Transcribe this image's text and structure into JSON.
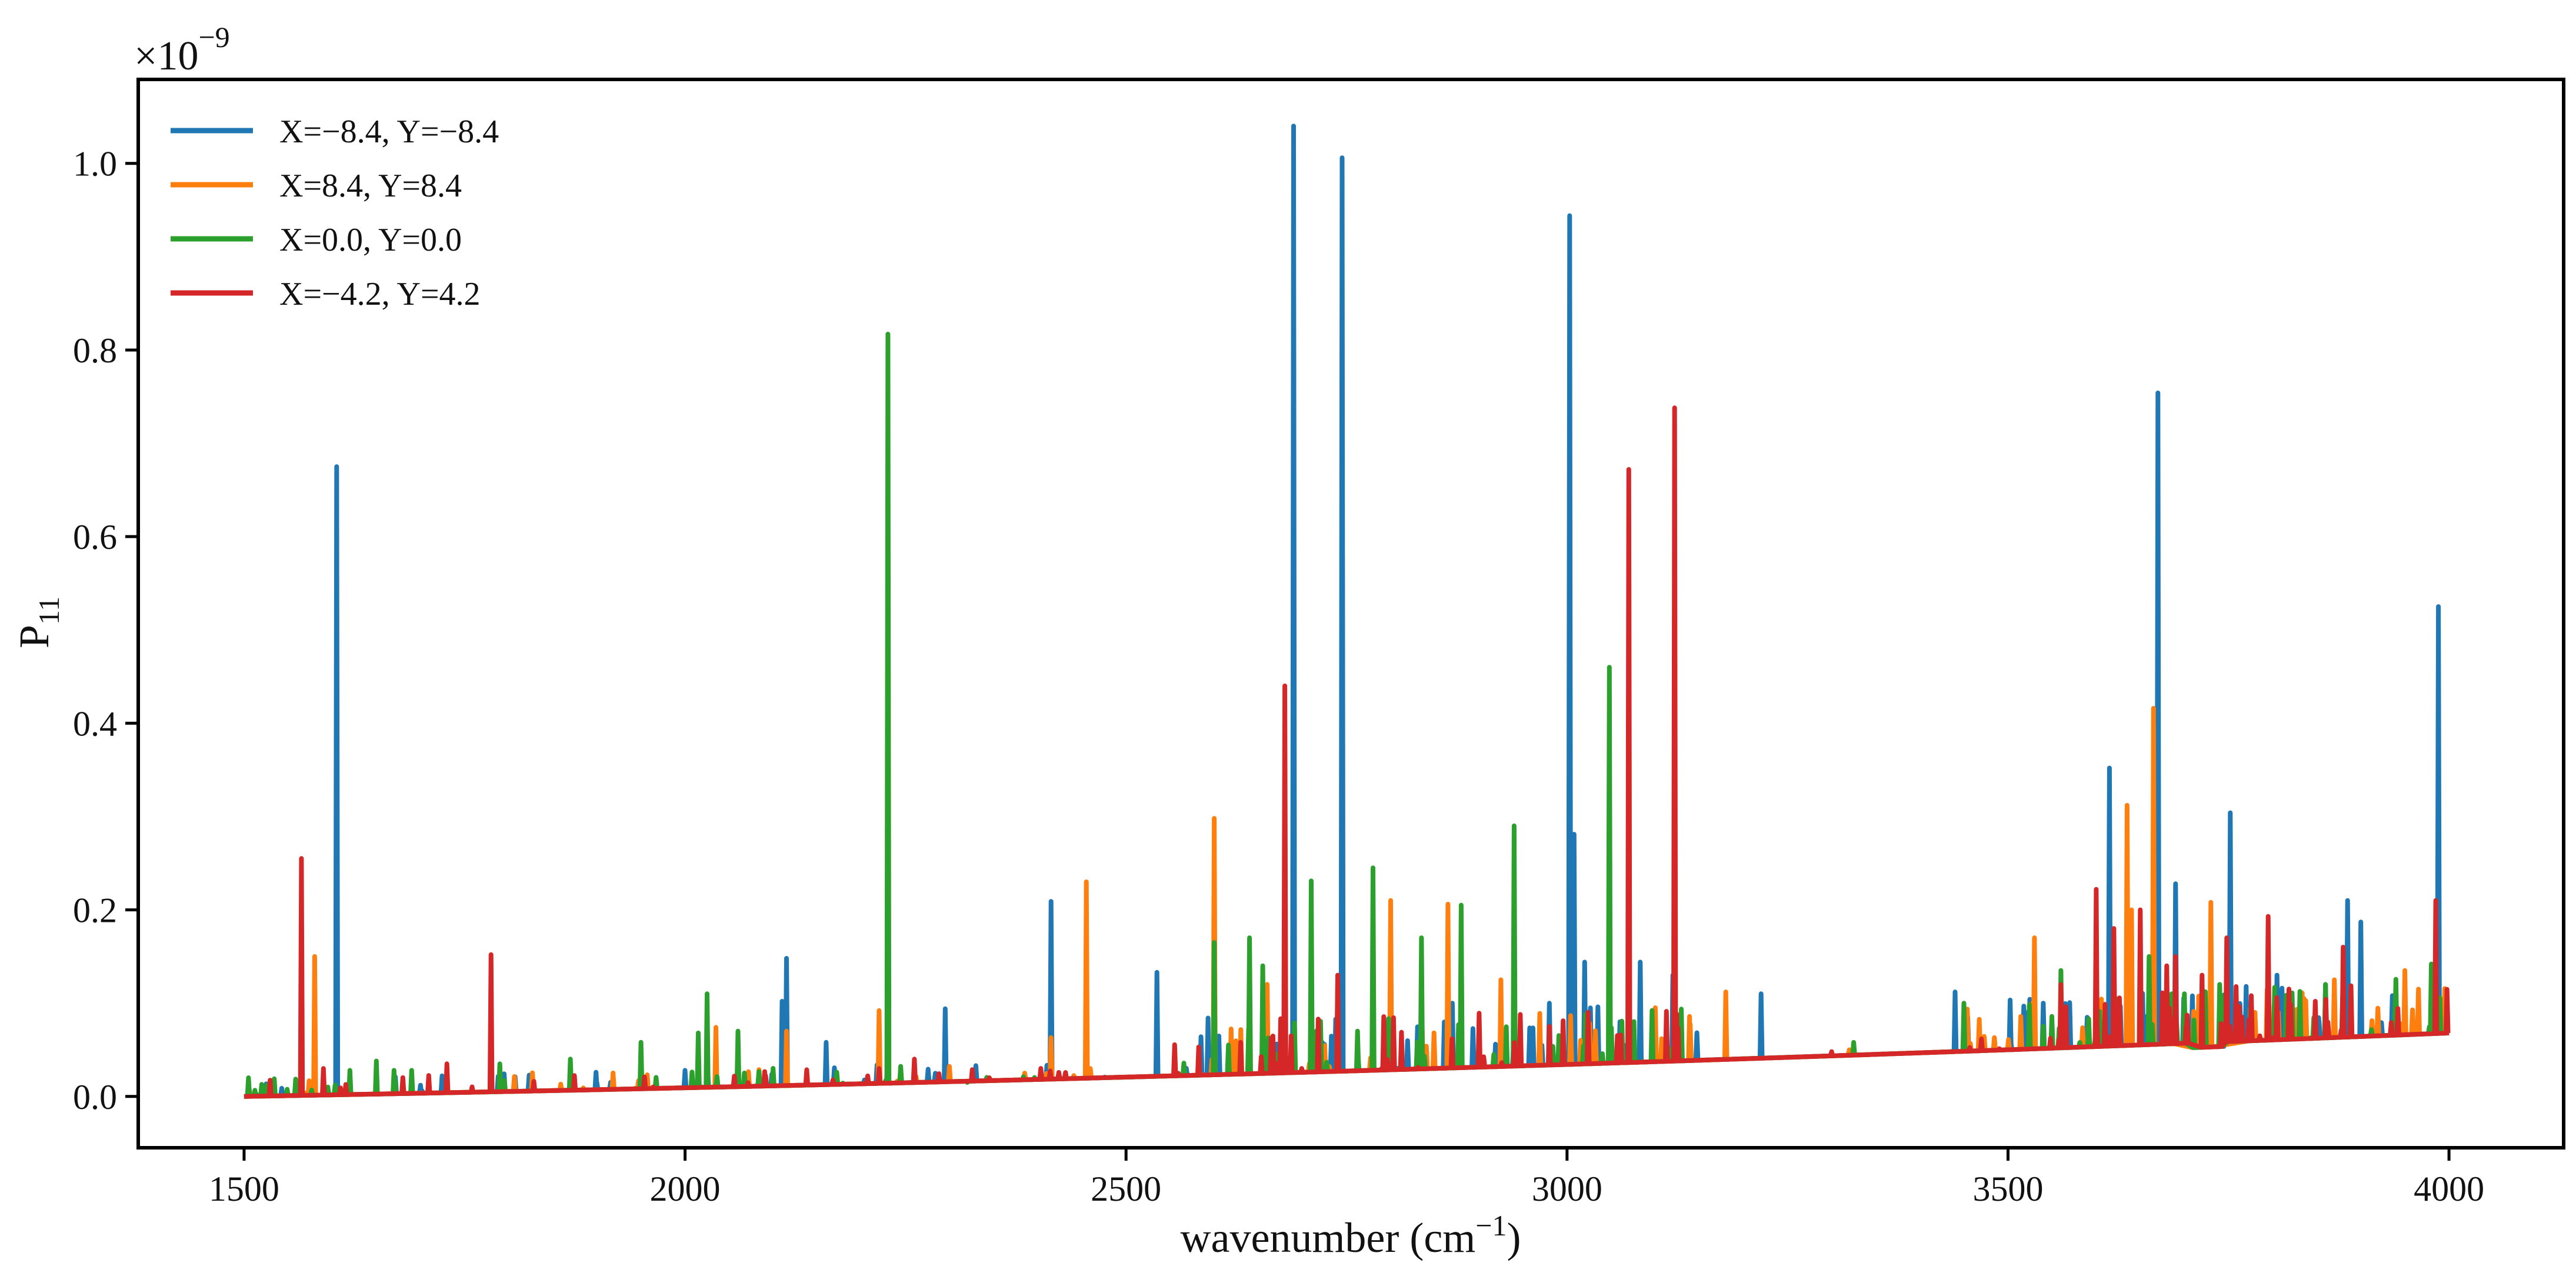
{
  "chart_data": {
    "type": "line",
    "title": "",
    "xlabel": "wavenumber (cm",
    "xlabel_sup": "−1",
    "xlabel_end": ")",
    "ylabel": "P",
    "ylabel_sub": "11",
    "offset_base": "×10",
    "offset_exp": "−9",
    "xlim": [
      1380,
      4130
    ],
    "ylim": [
      -0.055,
      1.09
    ],
    "x_ticks": [
      1500,
      2000,
      2500,
      3000,
      3500,
      4000
    ],
    "x_tick_labels": [
      "1500",
      "2000",
      "2500",
      "3000",
      "3500",
      "4000"
    ],
    "y_ticks": [
      0.0,
      0.2,
      0.4,
      0.6,
      0.8,
      1.0
    ],
    "y_tick_labels": [
      "0.0",
      "0.2",
      "0.4",
      "0.6",
      "0.8",
      "1.0"
    ],
    "grid": false,
    "legend_position": "top-left",
    "baseline": {
      "x_start": 1500,
      "x_end": 4000,
      "y_start": 0.0,
      "y_end": 0.068,
      "dip_x": [
        3708,
        3745
      ],
      "dip_depth": -0.005
    },
    "series": [
      {
        "name": "X=−8.4, Y=−8.4",
        "color": "#1f77b4",
        "peaks": [
          [
            1605,
            0.675
          ],
          [
            2110,
            0.102
          ],
          [
            2115,
            0.148
          ],
          [
            2160,
            0.058
          ],
          [
            2295,
            0.094
          ],
          [
            2415,
            0.209
          ],
          [
            2470,
            0.02
          ],
          [
            2535,
            0.133
          ],
          [
            2585,
            0.064
          ],
          [
            2593,
            0.084
          ],
          [
            2690,
            1.04
          ],
          [
            2745,
            1.006
          ],
          [
            3003,
            0.944
          ],
          [
            3008,
            0.281
          ],
          [
            3020,
            0.144
          ],
          [
            3035,
            0.096
          ],
          [
            3083,
            0.144
          ],
          [
            3120,
            0.13
          ],
          [
            3220,
            0.11
          ],
          [
            3440,
            0.112
          ],
          [
            3615,
            0.352
          ],
          [
            3670,
            0.754
          ],
          [
            3690,
            0.228
          ],
          [
            3752,
            0.304
          ],
          [
            3805,
            0.13
          ],
          [
            3885,
            0.21
          ],
          [
            3900,
            0.187
          ],
          [
            3988,
            0.525
          ],
          [
            2000,
            0.028
          ],
          [
            2800,
            0.09
          ],
          [
            2870,
            0.1
          ],
          [
            2980,
            0.1
          ],
          [
            1560,
            0.007
          ],
          [
            1700,
            0.012
          ],
          [
            1900,
            0.015
          ],
          [
            2960,
            0.04
          ],
          [
            3060,
            0.08
          ],
          [
            3540,
            0.1
          ],
          [
            3860,
            0.12
          ]
        ]
      },
      {
        "name": "X=8.4, Y=8.4",
        "color": "#ff7f0e",
        "peaks": [
          [
            1580,
            0.15
          ],
          [
            2035,
            0.074
          ],
          [
            2115,
            0.07
          ],
          [
            2220,
            0.092
          ],
          [
            2415,
            0.063
          ],
          [
            2455,
            0.23
          ],
          [
            2600,
            0.298
          ],
          [
            2660,
            0.12
          ],
          [
            2780,
            0.12
          ],
          [
            2800,
            0.21
          ],
          [
            2865,
            0.206
          ],
          [
            2925,
            0.125
          ],
          [
            3180,
            0.112
          ],
          [
            3320,
            0.05
          ],
          [
            3530,
            0.17
          ],
          [
            3635,
            0.312
          ],
          [
            3665,
            0.416
          ],
          [
            3730,
            0.208
          ],
          [
            3870,
            0.125
          ],
          [
            3950,
            0.135
          ],
          [
            3990,
            0.1
          ],
          [
            2385,
            0.025
          ],
          [
            3640,
            0.2
          ],
          [
            3780,
            0.09
          ],
          [
            2980,
            0.06
          ]
        ]
      },
      {
        "name": "X=0.0, Y=0.0",
        "color": "#2ca02c",
        "peaks": [
          [
            1505,
            0.02
          ],
          [
            1520,
            0.013
          ],
          [
            1595,
            0.01
          ],
          [
            1620,
            0.028
          ],
          [
            1650,
            0.038
          ],
          [
            1670,
            0.028
          ],
          [
            1690,
            0.028
          ],
          [
            1790,
            0.035
          ],
          [
            1870,
            0.04
          ],
          [
            1950,
            0.058
          ],
          [
            2015,
            0.068
          ],
          [
            2025,
            0.11
          ],
          [
            2060,
            0.07
          ],
          [
            2230,
            0.817
          ],
          [
            2320,
            0.015
          ],
          [
            2600,
            0.165
          ],
          [
            2640,
            0.17
          ],
          [
            2655,
            0.14
          ],
          [
            2710,
            0.231
          ],
          [
            2740,
            0.12
          ],
          [
            2780,
            0.245
          ],
          [
            2835,
            0.17
          ],
          [
            2880,
            0.205
          ],
          [
            2940,
            0.29
          ],
          [
            3048,
            0.46
          ],
          [
            3325,
            0.058
          ],
          [
            3450,
            0.1
          ],
          [
            3560,
            0.135
          ],
          [
            3600,
            0.175
          ],
          [
            3740,
            0.12
          ],
          [
            3860,
            0.12
          ],
          [
            3980,
            0.142
          ],
          [
            2640,
            0.085
          ],
          [
            3660,
            0.15
          ],
          [
            3700,
            0.11
          ]
        ]
      },
      {
        "name": "X=−4.2, Y=4.2",
        "color": "#d62728",
        "peaks": [
          [
            1565,
            0.255
          ],
          [
            1590,
            0.03
          ],
          [
            1730,
            0.035
          ],
          [
            1780,
            0.152
          ],
          [
            2220,
            0.03
          ],
          [
            2260,
            0.04
          ],
          [
            2345,
            0.02
          ],
          [
            2630,
            0.058
          ],
          [
            2680,
            0.44
          ],
          [
            2740,
            0.13
          ],
          [
            3070,
            0.672
          ],
          [
            3122,
            0.738
          ],
          [
            3600,
            0.222
          ],
          [
            3620,
            0.18
          ],
          [
            3650,
            0.2
          ],
          [
            3690,
            0.15
          ],
          [
            3748,
            0.17
          ],
          [
            3795,
            0.193
          ],
          [
            3880,
            0.16
          ],
          [
            3985,
            0.21
          ],
          [
            2980,
            0.075
          ],
          [
            3300,
            0.048
          ],
          [
            3560,
            0.12
          ],
          [
            3680,
            0.14
          ],
          [
            3720,
            0.13
          ]
        ]
      }
    ]
  }
}
